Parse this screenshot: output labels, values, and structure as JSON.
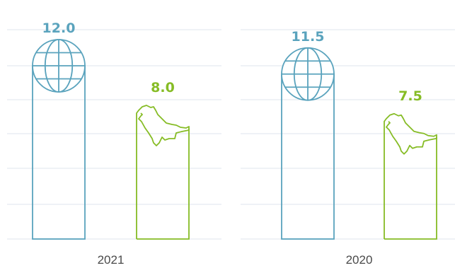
{
  "chart_data": {
    "type": "bar",
    "groups": [
      {
        "category": "2021",
        "bars": [
          {
            "value": 12.0,
            "label": "12.0",
            "color": "#5aa3bd",
            "icon": "globe-icon"
          },
          {
            "value": 8.0,
            "label": "8.0",
            "color": "#86bc25",
            "icon": "saudi-arabia-map-icon"
          }
        ]
      },
      {
        "category": "2020",
        "bars": [
          {
            "value": 11.5,
            "label": "11.5",
            "color": "#5aa3bd",
            "icon": "globe-icon"
          },
          {
            "value": 7.5,
            "label": "7.5",
            "color": "#86bc25",
            "icon": "saudi-arabia-map-icon"
          }
        ]
      }
    ],
    "ylim": [
      0,
      12.5
    ],
    "grid": true,
    "colors": {
      "grid": "#dfe6ec",
      "text": "#4a4a4a"
    }
  }
}
